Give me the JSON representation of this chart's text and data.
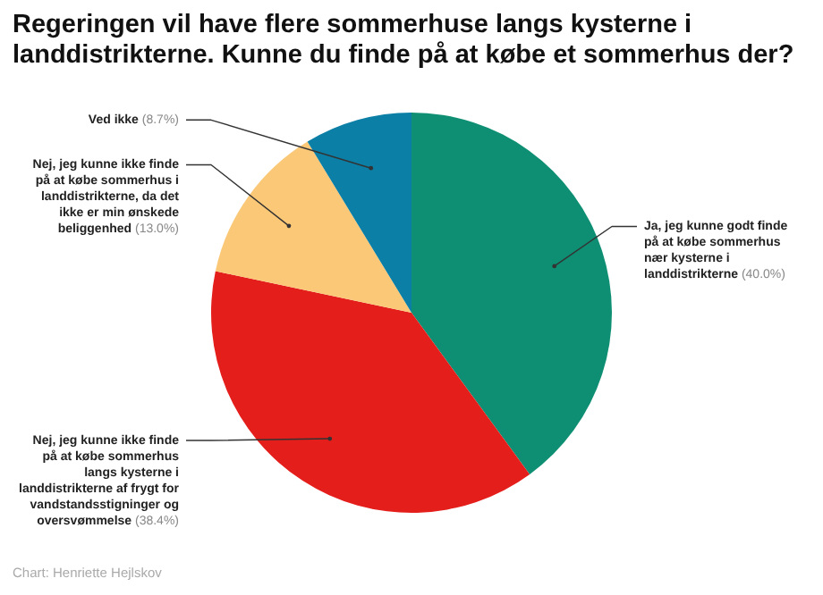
{
  "chart_data": {
    "type": "pie",
    "title": "Regeringen vil have flere sommerhuse langs kysterne i landdistrikterne. Kunne du finde på at købe et sommerhus der?",
    "categories": [
      "Ja, jeg kunne godt finde på at købe sommerhus nær kysterne i landdistrikterne",
      "Nej, jeg kunne ikke finde på at købe sommerhus langs kysterne i landdistrikterne af frygt for vandstandsstigninger og oversvømmelse",
      "Nej, jeg kunne ikke finde på at købe sommerhus i landdistrikterne, da det ikke er min ønskede beliggenhed",
      "Ved ikke"
    ],
    "values": [
      40.0,
      38.4,
      13.0,
      8.7
    ],
    "value_labels": [
      "(40.0%)",
      "(38.4%)",
      "(13.0%)",
      "(8.7%)"
    ],
    "colors": [
      "#0e8f73",
      "#e41e1b",
      "#fbc877",
      "#0b7fa6"
    ],
    "annotations": [
      "Chart: Henriette Hejlskov"
    ]
  }
}
